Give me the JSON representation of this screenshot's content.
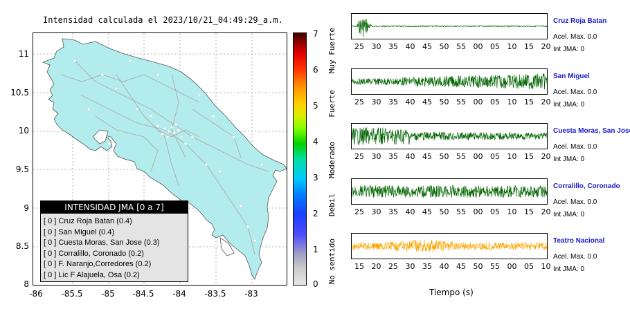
{
  "map": {
    "title": "Intensidad calculada el 2023/10/21_04:49:29_a.m.",
    "y_ticks": [
      "11",
      "10.5",
      "10",
      "9.5",
      "9",
      "8.5",
      "8"
    ],
    "x_ticks": [
      "-86",
      "-85.5",
      "-85",
      "-84.5",
      "-84",
      "-83.5",
      "-83"
    ],
    "land_color": "#b3ecec",
    "road_color": "#aaaaaa"
  },
  "legend": {
    "title": "INTENSIDAD JMA [0 a 7]",
    "rows": [
      "[ 0 ]  Cruz Roja Batan (0.4)",
      "[ 0 ]  San Miguel (0.4)",
      "[ 0 ]  Cuesta Moras, San Jose (0.3)",
      "[ 0 ]  Corralillo, Coronado (0.2)",
      "[ 0 ]  F. Naranjo,Corredores (0.2)",
      "[ 0 ]  Lic F Alajuela, Osa (0.2)"
    ]
  },
  "colorbar": {
    "ticks": [
      "7",
      "6",
      "5",
      "4",
      "3",
      "2",
      "1",
      "0"
    ],
    "labels": [
      "Muy Fuerte",
      "Fuerte",
      "Moderado",
      "Debil",
      "No sentido"
    ]
  },
  "traces": [
    {
      "name": "Cruz Roja Batan",
      "pga": "Acel. Max. 0.0",
      "jma": "Int JMA: 0",
      "color": "#006400",
      "ticks": [
        "25",
        "30",
        "35",
        "40",
        "45",
        "50",
        "55",
        "00",
        "05",
        "10",
        "15",
        "20"
      ]
    },
    {
      "name": "San Miguel",
      "pga": "Acel. Max. 0.0",
      "jma": "Int JMA: 0",
      "color": "#006400",
      "ticks": [
        "25",
        "30",
        "35",
        "40",
        "45",
        "50",
        "55",
        "00",
        "05",
        "10",
        "15",
        "20"
      ]
    },
    {
      "name": "Cuesta Moras, San Jose",
      "pga": "Acel. Max. 0.0",
      "jma": "Int JMA: 0",
      "color": "#006400",
      "ticks": [
        "25",
        "30",
        "35",
        "40",
        "45",
        "50",
        "55",
        "00",
        "05",
        "10",
        "15",
        "20"
      ]
    },
    {
      "name": "Corralillo, Coronado",
      "pga": "Acel. Max. 0.0",
      "jma": "Int JMA: 0",
      "color": "#006400",
      "ticks": [
        "25",
        "30",
        "35",
        "40",
        "45",
        "50",
        "55",
        "00",
        "05",
        "10",
        "15",
        "20"
      ]
    },
    {
      "name": "Teatro Nacional",
      "pga": "Acel. Max. 0.0",
      "jma": "Int JMA: 0",
      "color": "#ffa500",
      "ticks": [
        "15",
        "20",
        "25",
        "30",
        "35",
        "40",
        "45",
        "50",
        "55",
        "00",
        "05",
        "10"
      ]
    }
  ],
  "time_axis_label": "Tiempo (s)"
}
